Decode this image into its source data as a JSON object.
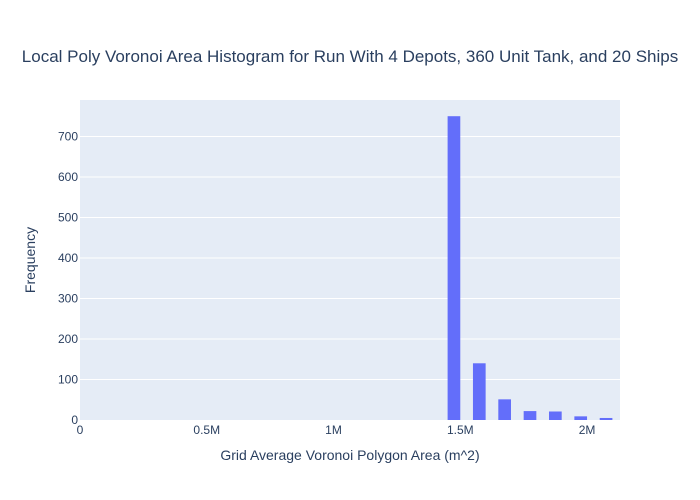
{
  "chart_data": {
    "type": "bar",
    "title": "Local Poly Voronoi Area Histogram for Run With 4 Depots, 360 Unit Tank, and 20 Ships",
    "xlabel": "Grid Average Voronoi Polygon Area (m^2)",
    "ylabel": "Frequency",
    "xlim": [
      0,
      2130000
    ],
    "ylim": [
      0,
      790
    ],
    "x_tick_values": [
      0,
      500000,
      1000000,
      1500000,
      2000000
    ],
    "x_tick_labels": [
      "0",
      "0.5M",
      "1M",
      "1.5M",
      "2M"
    ],
    "y_tick_values": [
      0,
      100,
      200,
      300,
      400,
      500,
      600,
      700
    ],
    "y_tick_labels": [
      "0",
      "100",
      "200",
      "300",
      "400",
      "500",
      "600",
      "700"
    ],
    "bins": [
      {
        "x": 1475000,
        "y": 750
      },
      {
        "x": 1575000,
        "y": 140
      },
      {
        "x": 1675000,
        "y": 51
      },
      {
        "x": 1775000,
        "y": 22
      },
      {
        "x": 1875000,
        "y": 21
      },
      {
        "x": 1975000,
        "y": 9
      },
      {
        "x": 2075000,
        "y": 5
      }
    ],
    "bar_width": 50000,
    "grid": true,
    "colors": {
      "bar": "#636efa",
      "plot_bg": "#e5ecf6",
      "grid": "#ffffff",
      "text": "#2a3f5f"
    }
  }
}
